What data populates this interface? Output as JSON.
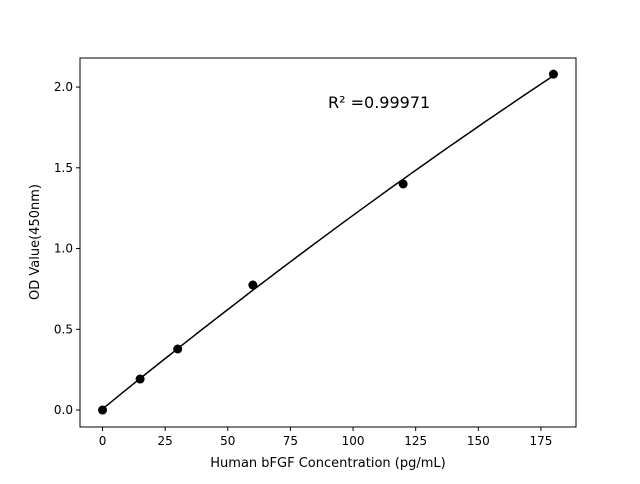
{
  "chart_data": {
    "type": "scatter",
    "title": "",
    "xlabel": "Human bFGF Concentration (pg/mL)",
    "ylabel": "OD Value(450nm)",
    "xlim": [
      -9,
      189
    ],
    "ylim": [
      -0.105,
      2.18
    ],
    "xticks": [
      0,
      25,
      50,
      75,
      100,
      125,
      150,
      175
    ],
    "yticks": [
      "0.0",
      "0.5",
      "1.0",
      "1.5",
      "2.0"
    ],
    "grid": false,
    "annotation": "R² =0.99971",
    "series": [
      {
        "x": [
          0,
          15,
          30,
          60,
          120,
          180
        ],
        "y": [
          0.0,
          0.192,
          0.378,
          0.774,
          1.4,
          2.08
        ],
        "marker": "circle",
        "color": "#000000",
        "fit_line": "quadratic"
      }
    ]
  }
}
